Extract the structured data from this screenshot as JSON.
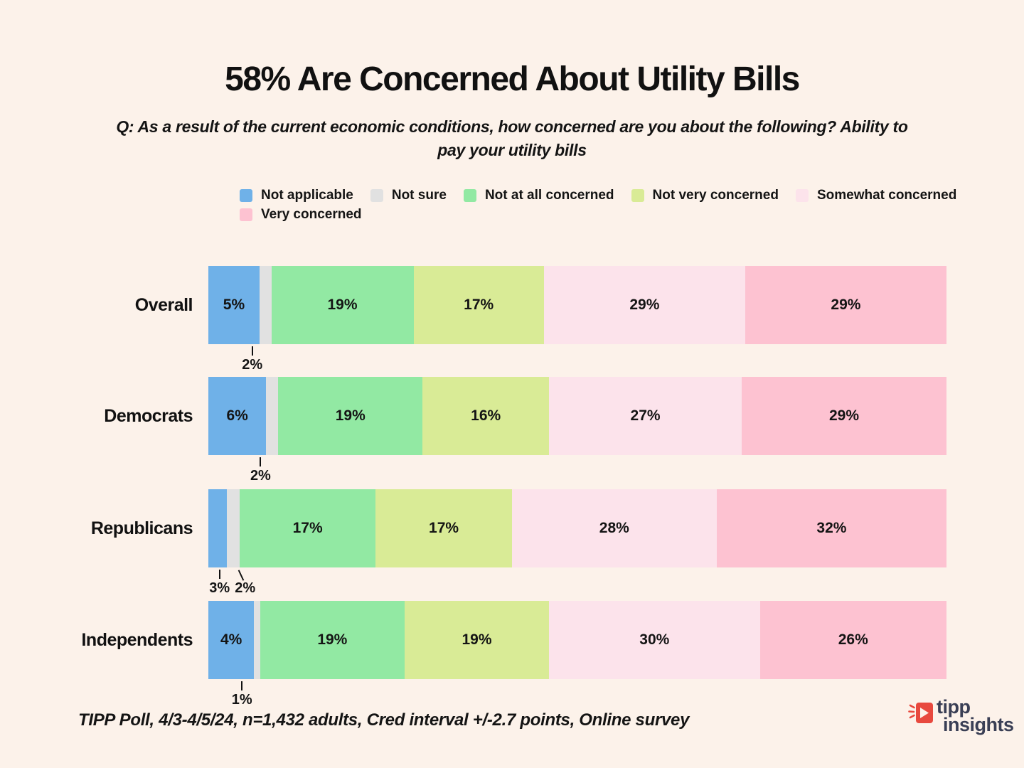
{
  "page": {
    "background": "#FCF2EA",
    "title": "58% Are Concerned About Utility Bills",
    "subtitle": "Q: As a result of the current economic conditions, how concerned are you about the following? Ability to\npay your utility bills",
    "footnote": "TIPP Poll, 4/3-4/5/24, n=1,432 adults, Cred interval +/-2.7 points, Online survey",
    "text_color": "#141414"
  },
  "logo": {
    "line1": "tipp",
    "line2": "insights",
    "text_color": "#3A3F55",
    "icon_color": "#E8493E",
    "icon": "megaphone-arrow-icon"
  },
  "chart_data": {
    "type": "bar",
    "variant": "horizontal-stacked",
    "unit": "%",
    "legend_position": "top-left",
    "grid": false,
    "xlim": [
      0,
      100
    ],
    "below_label_threshold_pct": 3,
    "categories": [
      "Overall",
      "Democrats",
      "Republicans",
      "Independents"
    ],
    "series": [
      {
        "name": "Not applicable",
        "color": "#6FB1E8",
        "values": [
          5,
          6,
          3,
          4
        ]
      },
      {
        "name": "Not sure",
        "color": "#E1E1E1",
        "values": [
          2,
          2,
          2,
          1
        ]
      },
      {
        "name": "Not at all concerned",
        "color": "#92E9A3",
        "values": [
          19,
          19,
          17,
          19
        ]
      },
      {
        "name": "Not very concerned",
        "color": "#D9EB96",
        "values": [
          17,
          16,
          17,
          19
        ]
      },
      {
        "name": "Somewhat concerned",
        "color": "#FCE3EB",
        "values": [
          29,
          27,
          28,
          30
        ]
      },
      {
        "name": "Very concerned",
        "color": "#FDC2D1",
        "values": [
          29,
          29,
          32,
          26
        ]
      }
    ]
  }
}
